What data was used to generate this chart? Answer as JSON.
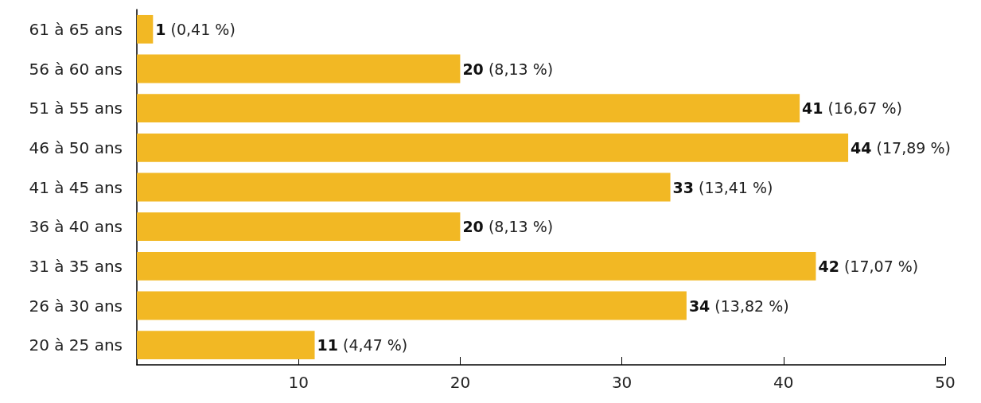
{
  "chart_data": {
    "type": "bar",
    "orientation": "horizontal",
    "categories": [
      "61 à 65 ans",
      "56 à 60 ans",
      "51 à 55 ans",
      "46 à 50 ans",
      "41 à 45 ans",
      "36 à 40 ans",
      "31 à 35 ans",
      "26 à 30 ans",
      "20 à 25 ans"
    ],
    "values": [
      1,
      20,
      41,
      44,
      33,
      20,
      42,
      34,
      11
    ],
    "color": "#f2b824",
    "value_labels": [
      "1 (0,41 %)",
      "20 (8,13 %)",
      "41 (16,67 %)",
      "44 (17,89 %)",
      "33 (13,41 %)",
      "20 (8,13 %)",
      "42 (17,07 %)",
      "34 (13,82 %)",
      "11 (4,47 %)"
    ],
    "xlim": [
      0,
      50
    ],
    "xticks": [
      {
        "value": 0,
        "label": null
      },
      10,
      20,
      30,
      40,
      50
    ],
    "grid": false
  }
}
